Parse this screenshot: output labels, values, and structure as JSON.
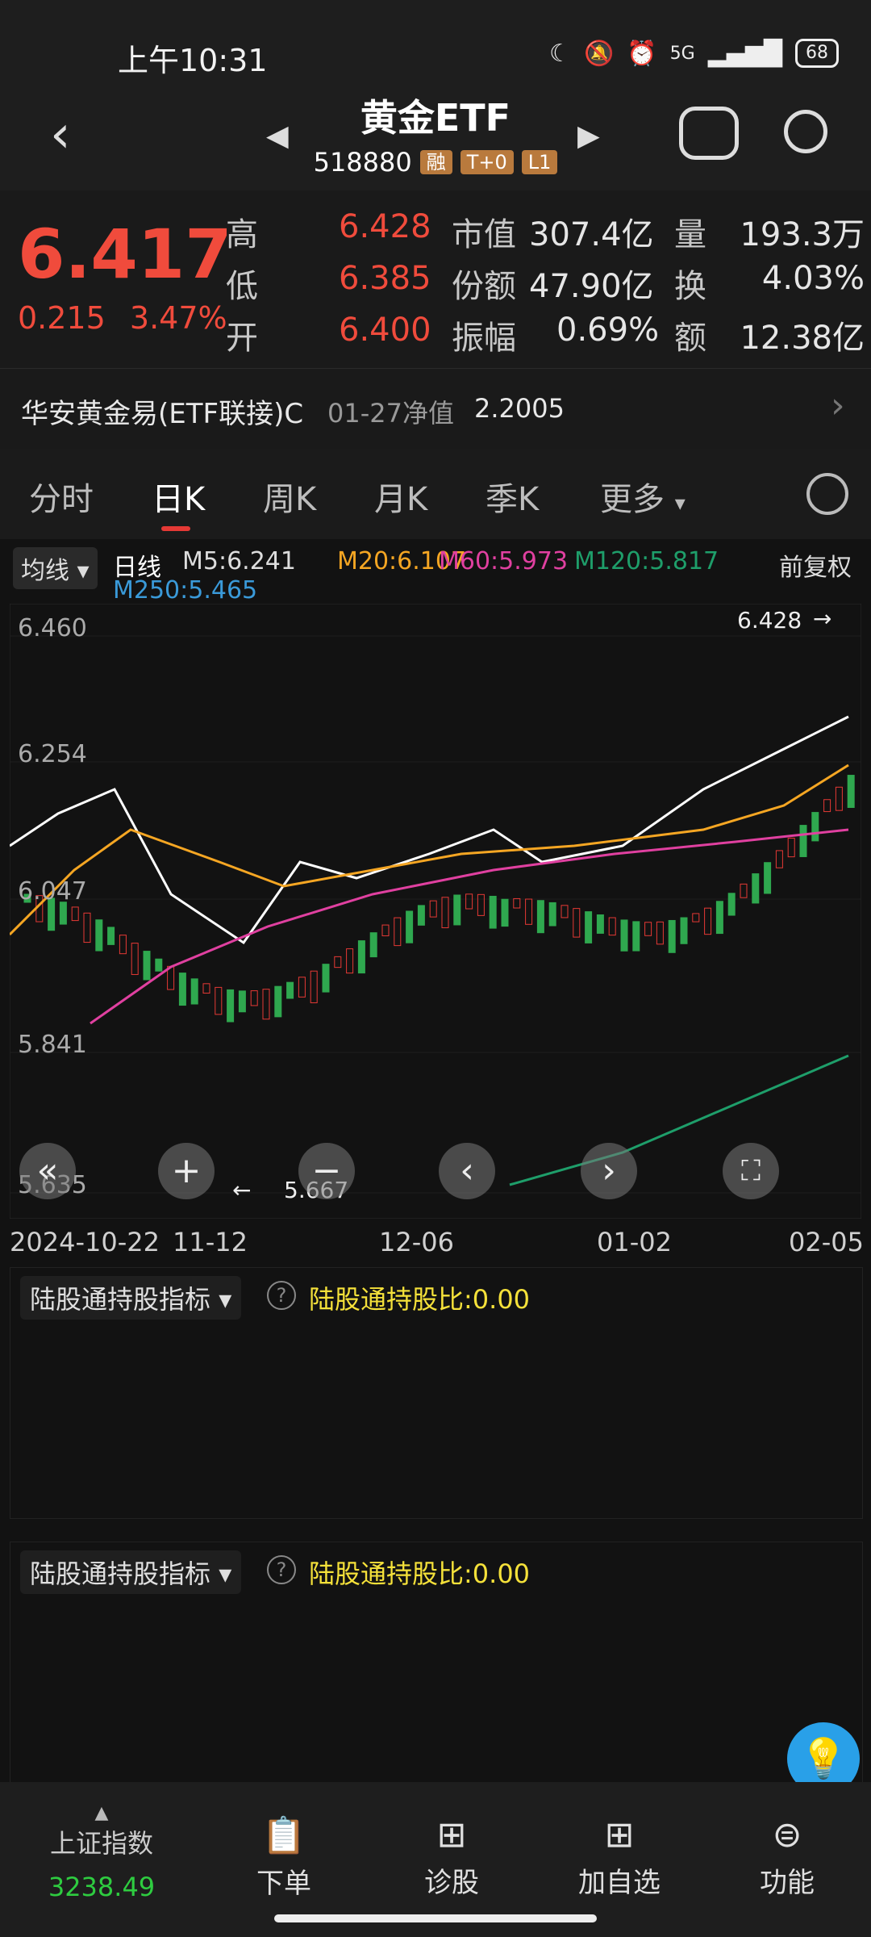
{
  "status_bar": {
    "time": "上午10:31",
    "battery": "68",
    "network": "5G"
  },
  "header": {
    "title": "黄金ETF",
    "code": "518880",
    "tags": [
      "融",
      "T+0",
      "L1"
    ]
  },
  "quote": {
    "price": "6.417",
    "change": "0.215",
    "change_pct": "3.47%",
    "stats": [
      {
        "label": "高",
        "value": "6.428"
      },
      {
        "label": "低",
        "value": "6.385"
      },
      {
        "label": "开",
        "value": "6.400"
      },
      {
        "label": "市值",
        "value": "307.4亿"
      },
      {
        "label": "份额",
        "value": "47.90亿"
      },
      {
        "label": "振幅",
        "value": "0.69%"
      },
      {
        "label": "量",
        "value": "193.3万"
      },
      {
        "label": "换",
        "value": "4.03%"
      },
      {
        "label": "额",
        "value": "12.38亿"
      }
    ]
  },
  "fund_link": {
    "name": "华安黄金易(ETF联接)C",
    "date_label": "01-27净值",
    "nav": "2.2005"
  },
  "tabs": [
    "分时",
    "日K",
    "周K",
    "月K",
    "季K",
    "更多"
  ],
  "active_tab": "日K",
  "ma_legend": {
    "selector": "均线",
    "kind": "日线",
    "items": [
      {
        "label": "M5:6.241",
        "color": "#ffffff"
      },
      {
        "label": "M20:6.107",
        "color": "#f5a623"
      },
      {
        "label": "M60:5.973",
        "color": "#e040a0"
      },
      {
        "label": "M120:5.817",
        "color": "#1e9e6a"
      },
      {
        "label": "M250:5.465",
        "color": "#3a9ad9"
      }
    ],
    "adjust": "前复权"
  },
  "chart_data": {
    "type": "candlestick",
    "y_ticks": [
      "6.460",
      "6.254",
      "6.047",
      "5.841",
      "5.635"
    ],
    "x_ticks": [
      "2024-10-22",
      "11-12",
      "12-06",
      "01-02",
      "02-05"
    ],
    "high_label": "6.428",
    "low_label": "5.667",
    "ylim": [
      5.635,
      6.46
    ]
  },
  "panels": [
    {
      "title": "陆股通持股指标",
      "value": "陆股通持股比:0.00"
    },
    {
      "title": "陆股通持股指标",
      "value": "陆股通持股比:0.00"
    }
  ],
  "bottom_nav": {
    "index_name": "上证指数",
    "index_value": "3238.49",
    "items": [
      "下单",
      "诊股",
      "加自选",
      "功能"
    ]
  }
}
